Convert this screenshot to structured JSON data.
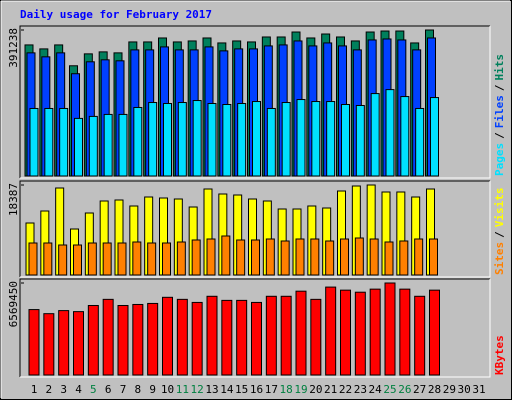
{
  "chart_data": {
    "type": "bar",
    "title": "Daily usage for February 2017",
    "categories": [
      1,
      2,
      3,
      4,
      5,
      6,
      7,
      8,
      9,
      10,
      11,
      12,
      13,
      14,
      15,
      16,
      17,
      18,
      19,
      20,
      21,
      22,
      23,
      24,
      25,
      26,
      27,
      28,
      29,
      30,
      31
    ],
    "weekend_categories": [
      5,
      11,
      12,
      18,
      19,
      25,
      26
    ],
    "weekend_color": "#008040",
    "legend_separator": "/",
    "panels": [
      {
        "ylim": [
          0,
          391238
        ],
        "yticks": [
          391238
        ],
        "series": [
          {
            "name": "Hits",
            "color": "#00805c",
            "values": [
              351252,
              340608,
              351252,
              295371,
              327303,
              332625,
              329964,
              359235,
              359235,
              369879,
              359235,
              361896,
              369879,
              356574,
              361896,
              359235,
              372540,
              372540,
              385845,
              369879,
              380523,
              372540,
              361896,
              385845,
              388506,
              388506,
              356574,
              391238,
              null,
              null,
              null
            ]
          },
          {
            "name": "Files",
            "color": "#0040ff",
            "values": [
              329964,
              319320,
              329964,
              274083,
              306015,
              311337,
              308676,
              337947,
              337947,
              345930,
              337947,
              337947,
              345930,
              335286,
              340608,
              340608,
              348591,
              351252,
              361896,
              348591,
              356574,
              348591,
              337947,
              364557,
              367218,
              364557,
              337947,
              369879,
              null,
              null,
              null
            ]
          },
          {
            "name": "Pages",
            "color": "#00e0ff",
            "values": [
              180948,
              180948,
              180948,
              154338,
              159660,
              164982,
              164982,
              183609,
              196914,
              194253,
              196914,
              202236,
              194253,
              191592,
              194253,
              199575,
              180948,
              196914,
              204897,
              199575,
              199575,
              191592,
              188931,
              220863,
              231507,
              212880,
              180948,
              210219,
              null,
              null,
              null
            ]
          }
        ]
      },
      {
        "ylim": [
          0,
          18387
        ],
        "yticks": [
          18387
        ],
        "series": [
          {
            "name": "Visits",
            "color": "#ffff00",
            "values": [
              10624,
              13075,
              17774,
              9398,
              12667,
              15118,
              15323,
              14097,
              15935,
              15731,
              15527,
              13892,
              17570,
              16548,
              16344,
              15527,
              15118,
              13484,
              13484,
              14097,
              13688,
              17161,
              18183,
              18387,
              16957,
              16957,
              15935,
              17570,
              null,
              null,
              null
            ]
          },
          {
            "name": "Sites",
            "color": "#ff8000",
            "values": [
              6538,
              6538,
              6129,
              6129,
              6538,
              6538,
              6538,
              6742,
              6538,
              6538,
              6742,
              7151,
              7355,
              7968,
              7151,
              7151,
              7355,
              6946,
              7355,
              7355,
              6946,
              7355,
              7559,
              7355,
              6742,
              6946,
              7355,
              7355,
              null,
              null,
              null
            ]
          }
        ]
      },
      {
        "ylim": [
          0,
          6569450
        ],
        "yticks": [
          6569450
        ],
        "series": [
          {
            "name": "KBytes",
            "color": "#ff0000",
            "values": [
              4671616,
              4379640,
              4598622,
              4525628,
              4963592,
              5401556,
              4963592,
              5036586,
              5109580,
              5547544,
              5401556,
              5182574,
              5620538,
              5328562,
              5328562,
              5182574,
              5620538,
              5620538,
              5985508,
              5401556,
              6277484,
              6058502,
              5912514,
              6131496,
              6569450,
              6131496,
              5620538,
              6058502,
              null,
              null,
              null
            ]
          }
        ]
      }
    ]
  }
}
